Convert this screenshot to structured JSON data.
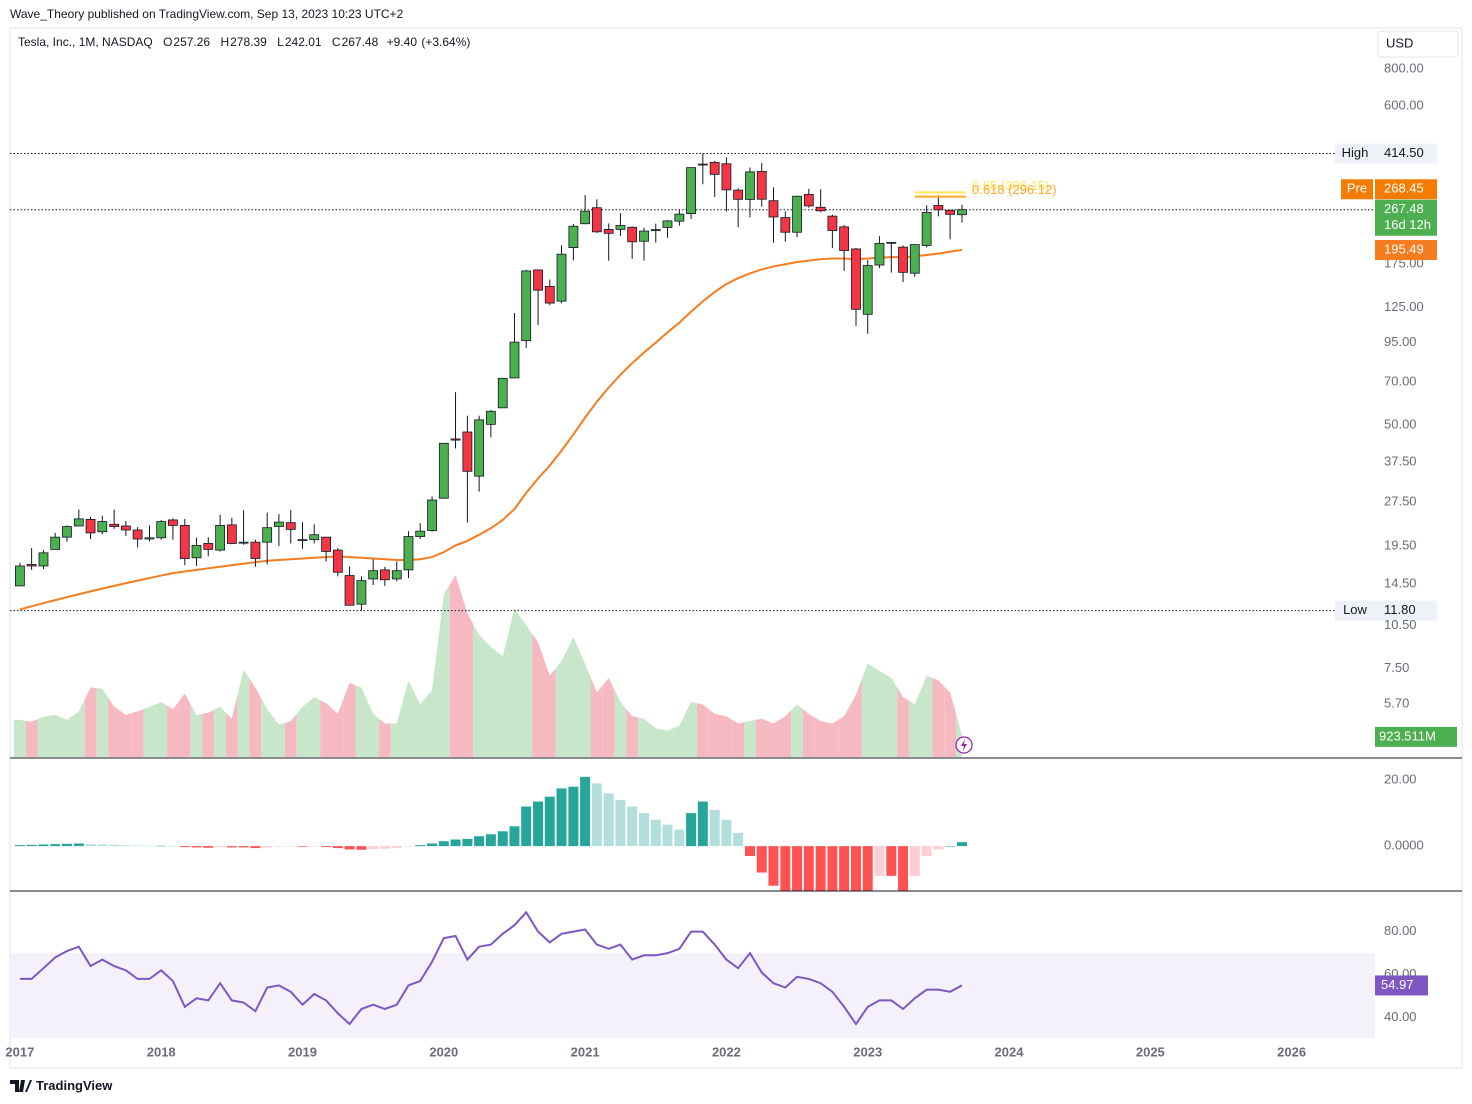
{
  "header": {
    "publisher": "Wave_Theory published on TradingView.com, Sep 13, 2023 10:23 UTC+2"
  },
  "footer": {
    "brand": "TradingView"
  },
  "chart_data": [
    {
      "type": "candlestick",
      "title": "Tesla, Inc., 1M, NASDAQ",
      "currency": "USD",
      "legend_keys": [
        "O",
        "H",
        "L",
        "C"
      ],
      "change": {
        "value": 9.4,
        "label": "+9.40"
      },
      "change_pct": {
        "value": 3.64,
        "label": "(+3.64%)"
      },
      "log_scale": true,
      "up_color": "#4caf50",
      "down_color": "#f23645",
      "xlim": [
        2016.93,
        2026.59
      ],
      "xticks": [
        2017,
        2018,
        2019,
        2020,
        2021,
        2022,
        2023,
        2024,
        2025,
        2026
      ],
      "ylim": [
        3.774,
        1084
      ],
      "yticks": [
        {
          "value": 800,
          "label": "800.00"
        },
        {
          "value": 600,
          "label": "600.00"
        },
        {
          "value": 175,
          "label": "175.00"
        },
        {
          "value": 125,
          "label": "125.00"
        },
        {
          "value": 95,
          "label": "95.00"
        },
        {
          "value": 70,
          "label": "70.00"
        },
        {
          "value": 50,
          "label": "50.00"
        },
        {
          "value": 37.5,
          "label": "37.50"
        },
        {
          "value": 27.5,
          "label": "27.50"
        },
        {
          "value": 19.5,
          "label": "19.50"
        },
        {
          "value": 14.5,
          "label": "14.50"
        },
        {
          "value": 10.5,
          "label": "10.50"
        },
        {
          "value": 7.5,
          "label": "7.50"
        },
        {
          "value": 5.7,
          "label": "5.70"
        }
      ],
      "x": [
        2017.0,
        2017.083,
        2017.167,
        2017.25,
        2017.333,
        2017.417,
        2017.5,
        2017.583,
        2017.667,
        2017.75,
        2017.833,
        2017.917,
        2018.0,
        2018.083,
        2018.167,
        2018.25,
        2018.333,
        2018.417,
        2018.5,
        2018.583,
        2018.667,
        2018.75,
        2018.833,
        2018.917,
        2019.0,
        2019.083,
        2019.167,
        2019.25,
        2019.333,
        2019.417,
        2019.5,
        2019.583,
        2019.667,
        2019.75,
        2019.833,
        2019.917,
        2020.0,
        2020.083,
        2020.167,
        2020.25,
        2020.333,
        2020.417,
        2020.5,
        2020.583,
        2020.667,
        2020.75,
        2020.833,
        2020.917,
        2021.0,
        2021.083,
        2021.167,
        2021.25,
        2021.333,
        2021.417,
        2021.5,
        2021.583,
        2021.667,
        2021.75,
        2021.833,
        2021.917,
        2022.0,
        2022.083,
        2022.167,
        2022.25,
        2022.333,
        2022.417,
        2022.5,
        2022.583,
        2022.667,
        2022.75,
        2022.833,
        2022.917,
        2023.0,
        2023.083,
        2023.167,
        2023.25,
        2023.333,
        2023.417,
        2023.5,
        2023.583,
        2023.667
      ],
      "open": [
        14.3,
        16.9,
        16.7,
        19.0,
        20.9,
        22.8,
        24.0,
        21.8,
        23.1,
        22.8,
        22.1,
        20.6,
        20.8,
        23.9,
        22.9,
        17.8,
        19.9,
        18.9,
        23.0,
        20.1,
        20.1,
        20.1,
        22.7,
        23.4,
        20.4,
        20.5,
        20.9,
        18.9,
        15.5,
        12.4,
        15.1,
        16.2,
        15.1,
        16.2,
        21.0,
        22.0,
        28.3,
        44.9,
        47.4,
        33.6,
        50.3,
        57.2,
        72.2,
        96.6,
        167.4,
        147.2,
        131.3,
        199.2,
        239.8,
        271.7,
        229.5,
        229.5,
        233.3,
        209.3,
        227.9,
        233.0,
        244.7,
        259.5,
        381.7,
        386.9,
        382.6,
        311.7,
        289.9,
        360.4,
        286.9,
        251.7,
        224.5,
        301.3,
        272.6,
        254.5,
        234.1,
        197.1,
        118.5,
        173.9,
        206.2,
        199.9,
        163.2,
        202.6,
        276.5,
        266.3,
        257.26
      ],
      "high": [
        17.1,
        19.2,
        18.9,
        21.6,
        22.9,
        25.9,
        24.5,
        24.7,
        25.9,
        23.7,
        22.6,
        22.9,
        23.9,
        24.2,
        24.1,
        20.8,
        20.9,
        24.9,
        24.3,
        25.8,
        20.5,
        25.3,
        25.0,
        25.8,
        23.5,
        23.1,
        20.9,
        19.2,
        16.6,
        15.4,
        17.6,
        16.6,
        17.3,
        21.9,
        23.3,
        28.7,
        43.5,
        64.6,
        53.8,
        53.8,
        56.2,
        72.1,
        119.7,
        167.5,
        167.5,
        155.3,
        202.6,
        239.6,
        300.1,
        290.1,
        240.4,
        260.3,
        235.0,
        232.5,
        240.0,
        246.8,
        266.3,
        371.7,
        414.5,
        390.9,
        402.7,
        315.9,
        371.6,
        384.3,
        318.5,
        264.2,
        298.3,
        314.7,
        313.8,
        257.5,
        237.4,
        198.9,
        180.7,
        217.7,
        207.8,
        202.7,
        204.5,
        276.9,
        299.3,
        266.5,
        278.39
      ],
      "low": [
        14.3,
        16.2,
        16.3,
        19.0,
        20.2,
        22.8,
        20.6,
        21.4,
        22.3,
        21.1,
        19.3,
        20.2,
        20.5,
        20.5,
        16.8,
        16.7,
        18.0,
        18.7,
        19.8,
        19.7,
        16.6,
        16.9,
        19.5,
        19.9,
        19.1,
        19.9,
        17.3,
        15.4,
        12.3,
        11.8,
        14.4,
        14.3,
        14.8,
        15.2,
        20.6,
        21.8,
        28.2,
        41.7,
        23.4,
        29.8,
        45.5,
        57.2,
        72.2,
        91.3,
        109.0,
        127.2,
        129.2,
        180.4,
        239.1,
        223.3,
        179.8,
        218.2,
        182.3,
        180.0,
        207.1,
        215.0,
        236.4,
        248.8,
        326.2,
        295.4,
        264.0,
        233.3,
        252.0,
        273.9,
        206.9,
        208.7,
        216.2,
        271.8,
        262.5,
        198.6,
        166.2,
        108.2,
        101.8,
        169.9,
        163.9,
        152.4,
        158.8,
        199.4,
        254.1,
        212.4,
        242.01
      ],
      "close": [
        16.7,
        16.7,
        18.5,
        20.9,
        22.7,
        24.1,
        21.6,
        23.6,
        22.7,
        22.1,
        20.6,
        20.8,
        23.6,
        22.9,
        17.7,
        19.6,
        19.0,
        22.9,
        19.9,
        20.1,
        17.7,
        22.5,
        23.5,
        22.2,
        20.5,
        21.3,
        18.7,
        15.9,
        12.3,
        14.9,
        16.1,
        15.0,
        16.1,
        21.0,
        21.9,
        27.9,
        43.4,
        44.5,
        34.9,
        52.1,
        55.7,
        72.0,
        95.4,
        166.1,
        143.0,
        129.3,
        189.2,
        235.2,
        264.5,
        225.2,
        222.6,
        236.5,
        208.4,
        226.6,
        229.1,
        245.2,
        258.5,
        371.3,
        381.6,
        352.3,
        312.2,
        290.1,
        359.2,
        290.3,
        252.8,
        224.5,
        297.1,
        275.6,
        265.3,
        227.5,
        194.7,
        123.2,
        173.2,
        205.7,
        207.5,
        164.3,
        203.9,
        261.8,
        267.4,
        258.1,
        267.48
      ],
      "countdown": "16d 12h",
      "pre": {
        "name": "Pre",
        "value": 268.45,
        "color": "#f57c00"
      },
      "ma": {
        "color": "#f57c1f",
        "values": [
          11.9,
          12.2,
          12.5,
          12.8,
          13.1,
          13.4,
          13.7,
          14.0,
          14.3,
          14.6,
          14.9,
          15.2,
          15.5,
          15.8,
          16.0,
          16.2,
          16.4,
          16.6,
          16.8,
          17.0,
          17.2,
          17.4,
          17.5,
          17.6,
          17.7,
          17.8,
          17.9,
          18.0,
          17.9,
          17.8,
          17.7,
          17.6,
          17.5,
          17.5,
          17.6,
          17.9,
          18.6,
          19.6,
          20.3,
          21.3,
          22.4,
          23.9,
          26.0,
          29.5,
          33.0,
          36.5,
          41.0,
          46.5,
          53,
          60,
          67,
          74,
          81,
          88,
          95,
          103,
          111,
          121,
          131,
          141,
          150,
          157,
          163,
          168,
          172,
          175,
          178,
          180,
          182,
          183,
          183,
          182,
          183,
          184,
          185,
          185,
          186,
          188,
          190,
          193,
          195.49
        ]
      },
      "levels": [
        {
          "name": "High",
          "value": 414.5,
          "label": "414.50"
        },
        {
          "name": "Low",
          "value": 11.8,
          "label": "11.80"
        }
      ],
      "fib": [
        {
          "label": "0.65 (306.15)",
          "value": 306.15,
          "color": "#ffe75a"
        },
        {
          "label": "0.618 (296.12)",
          "value": 296.12,
          "color": "#ffa726"
        }
      ]
    },
    {
      "type": "area",
      "name": "volume",
      "colors": {
        "up": "#c8e6c9",
        "down": "#f7b9c1"
      },
      "value_label": "923.511M",
      "values": [
        1550,
        1470,
        1680,
        1760,
        1550,
        1900,
        2900,
        2850,
        2100,
        1760,
        1900,
        2100,
        2300,
        2000,
        2650,
        1750,
        1850,
        2100,
        1600,
        3650,
        2900,
        2000,
        1350,
        1500,
        2100,
        2500,
        2250,
        1800,
        3100,
        2900,
        1800,
        1400,
        1400,
        3200,
        2200,
        2800,
        6800,
        7600,
        6000,
        5100,
        4600,
        4200,
        6200,
        5500,
        4800,
        3400,
        4000,
        5000,
        3900,
        2700,
        3300,
        2300,
        1700,
        1600,
        1200,
        1100,
        1300,
        2300,
        2200,
        1800,
        1700,
        1400,
        1500,
        1600,
        1400,
        1700,
        2200,
        1800,
        1500,
        1400,
        1700,
        2600,
        3900,
        3600,
        3300,
        2500,
        2200,
        3400,
        3200,
        2700,
        923.511
      ]
    },
    {
      "type": "bar",
      "name": "MACD",
      "ylim": [
        -13.6,
        26.4
      ],
      "yticks": [
        {
          "value": 0,
          "label": "0.0000"
        },
        {
          "value": 20,
          "label": "20.00"
        }
      ],
      "colors": {
        "up_strong": "#26a69a",
        "up_weak": "#b2dfdb",
        "down_strong": "#ff5252",
        "down_weak": "#ffcdd2"
      },
      "values": [
        0.3,
        0.4,
        0.5,
        0.6,
        0.7,
        0.8,
        0.6,
        0.5,
        0.4,
        0.3,
        0.2,
        0.1,
        0.1,
        0.0,
        -0.3,
        -0.4,
        -0.5,
        -0.3,
        -0.4,
        -0.4,
        -0.6,
        -0.4,
        -0.2,
        -0.1,
        -0.2,
        -0.1,
        -0.3,
        -0.6,
        -1.0,
        -1.1,
        -0.9,
        -0.8,
        -0.6,
        -0.1,
        0.3,
        0.8,
        1.5,
        2.0,
        2.2,
        3.0,
        3.6,
        4.5,
        6.0,
        12.0,
        13.5,
        15.0,
        17.5,
        18.0,
        21.0,
        19.0,
        16.0,
        14.0,
        12.0,
        10.0,
        8.0,
        6.5,
        5.0,
        10.0,
        13.5,
        11.0,
        8.0,
        4.0,
        -3.0,
        -8.0,
        -12.0,
        -14.0,
        -14.0,
        -14.0,
        -14.0,
        -14.0,
        -14.0,
        -14.0,
        -14.0,
        -9.0,
        -9.0,
        -14.0,
        -9.0,
        -3.0,
        -1.0,
        0.0,
        1.2
      ]
    },
    {
      "type": "line",
      "name": "RSI",
      "color": "#7e57c2",
      "band": [
        30,
        70
      ],
      "band_color": "#f4f1fb",
      "ylim": [
        30.5,
        98
      ],
      "yticks": [
        {
          "value": 40,
          "label": "40.00"
        },
        {
          "value": 60,
          "label": "60.00"
        },
        {
          "value": 80,
          "label": "80.00"
        }
      ],
      "values": [
        58,
        58,
        63,
        68,
        71,
        73,
        64,
        67,
        64,
        62,
        58,
        58,
        62,
        57,
        45,
        49,
        48,
        56,
        48,
        47,
        43,
        54,
        55,
        52,
        46,
        51,
        48,
        42,
        37,
        44,
        46,
        44,
        46,
        55,
        57,
        66,
        77,
        78,
        67,
        73,
        74,
        79,
        83,
        89,
        80,
        75,
        79,
        80,
        81,
        74,
        72,
        74,
        67,
        69,
        69,
        70,
        72,
        80,
        80,
        74,
        67,
        63,
        70,
        61,
        56,
        54,
        59,
        58,
        56,
        52,
        45,
        37,
        45,
        48,
        48,
        44,
        49,
        53,
        53,
        52,
        54.97
      ]
    }
  ]
}
